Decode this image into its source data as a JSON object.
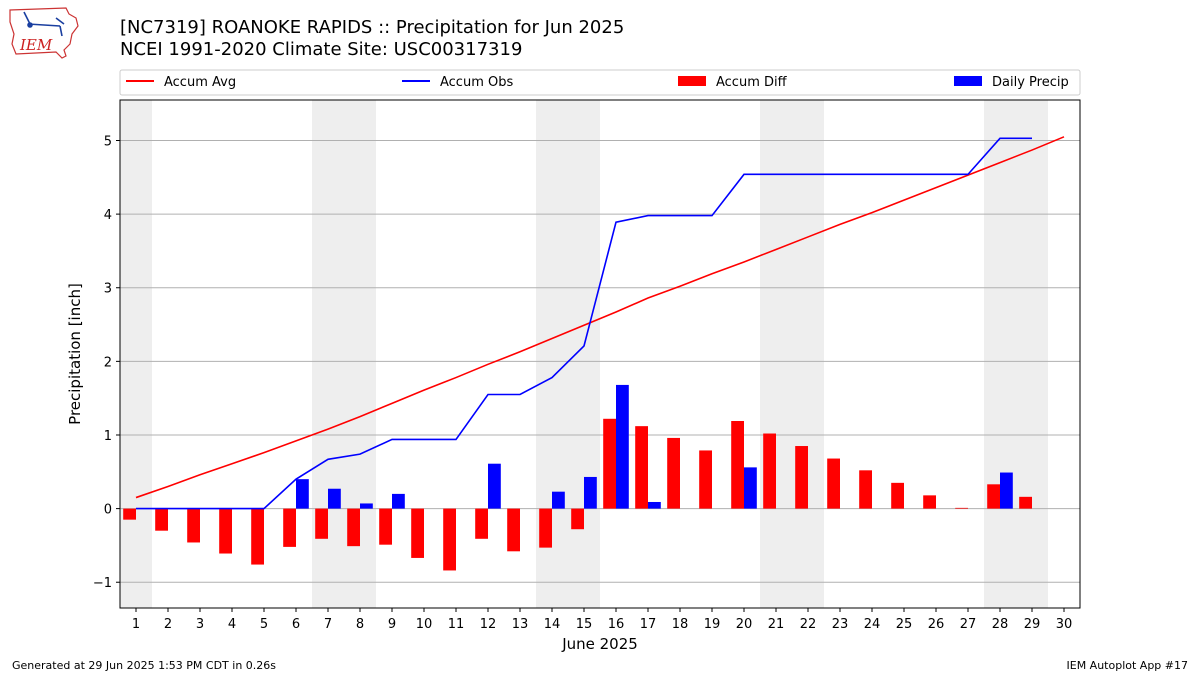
{
  "title": "[NC7319] ROANOKE RAPIDS :: Precipitation for Jun 2025",
  "subtitle": "NCEI 1991-2020 Climate Site: USC00317319",
  "logo_text": "IEM",
  "footer_left": "Generated at 29 Jun 2025 1:53 PM CDT in 0.26s",
  "footer_right": "IEM Autoplot App #17",
  "colors": {
    "accum_avg": "#ff0000",
    "accum_obs": "#0000ff",
    "accum_diff": "#ff0000",
    "daily_precip": "#0000ff",
    "weekend_shade": "#eeeeee",
    "grid": "#b0b0b0"
  },
  "chart_data": {
    "type": "bar",
    "xlabel": "June 2025",
    "ylabel": "Precipitation [inch]",
    "xlim": [
      0.5,
      30.5
    ],
    "ylim": [
      -1.35,
      5.55
    ],
    "x_ticks": [
      1,
      2,
      3,
      4,
      5,
      6,
      7,
      8,
      9,
      10,
      11,
      12,
      13,
      14,
      15,
      16,
      17,
      18,
      19,
      20,
      21,
      22,
      23,
      24,
      25,
      26,
      27,
      28,
      29,
      30
    ],
    "y_ticks": [
      -1,
      0,
      1,
      2,
      3,
      4,
      5
    ],
    "y_tick_labels": [
      "−1",
      "0",
      "1",
      "2",
      "3",
      "4",
      "5"
    ],
    "grid": "horizontal",
    "legend_position": "top",
    "weekend_shading": [
      [
        0.5,
        1.5
      ],
      [
        6.5,
        8.5
      ],
      [
        13.5,
        15.5
      ],
      [
        20.5,
        22.5
      ],
      [
        27.5,
        29.5
      ]
    ],
    "series": [
      {
        "name": "Accum Avg",
        "kind": "line",
        "x": [
          1,
          2,
          3,
          4,
          5,
          6,
          7,
          8,
          9,
          10,
          11,
          12,
          13,
          14,
          15,
          16,
          17,
          18,
          19,
          20,
          21,
          22,
          23,
          24,
          25,
          26,
          27,
          28,
          29,
          30
        ],
        "values": [
          0.15,
          0.3,
          0.46,
          0.61,
          0.76,
          0.92,
          1.08,
          1.25,
          1.43,
          1.61,
          1.78,
          1.96,
          2.13,
          2.31,
          2.49,
          2.67,
          2.86,
          3.02,
          3.19,
          3.35,
          3.52,
          3.69,
          3.86,
          4.02,
          4.19,
          4.36,
          4.53,
          4.7,
          4.87,
          5.05
        ]
      },
      {
        "name": "Accum Obs",
        "kind": "line",
        "x": [
          1,
          2,
          3,
          4,
          5,
          6,
          7,
          8,
          9,
          10,
          11,
          12,
          13,
          14,
          15,
          16,
          17,
          18,
          19,
          20,
          21,
          22,
          23,
          24,
          25,
          26,
          27,
          28,
          29
        ],
        "values": [
          0.0,
          0.0,
          0.0,
          0.0,
          0.0,
          0.4,
          0.67,
          0.74,
          0.94,
          0.94,
          0.94,
          1.55,
          1.55,
          1.78,
          2.21,
          3.89,
          3.98,
          3.98,
          3.98,
          4.54,
          4.54,
          4.54,
          4.54,
          4.54,
          4.54,
          4.54,
          4.54,
          5.03,
          5.03
        ]
      },
      {
        "name": "Accum Diff",
        "kind": "bar",
        "x": [
          1,
          2,
          3,
          4,
          5,
          6,
          7,
          8,
          9,
          10,
          11,
          12,
          13,
          14,
          15,
          16,
          17,
          18,
          19,
          20,
          21,
          22,
          23,
          24,
          25,
          26,
          27,
          28,
          29
        ],
        "values": [
          -0.15,
          -0.3,
          -0.46,
          -0.61,
          -0.76,
          -0.52,
          -0.41,
          -0.51,
          -0.49,
          -0.67,
          -0.84,
          -0.41,
          -0.58,
          -0.53,
          -0.28,
          1.22,
          1.12,
          0.96,
          0.79,
          1.19,
          1.02,
          0.85,
          0.68,
          0.52,
          0.35,
          0.18,
          0.01,
          0.33,
          0.16
        ]
      },
      {
        "name": "Daily Precip",
        "kind": "bar",
        "x": [
          1,
          2,
          3,
          4,
          5,
          6,
          7,
          8,
          9,
          10,
          11,
          12,
          13,
          14,
          15,
          16,
          17,
          18,
          19,
          20,
          21,
          22,
          23,
          24,
          25,
          26,
          27,
          28,
          29
        ],
        "values": [
          0,
          0,
          0,
          0,
          0,
          0.4,
          0.27,
          0.07,
          0.2,
          0,
          0,
          0.61,
          0,
          0.23,
          0.43,
          1.68,
          0.09,
          0,
          0,
          0.56,
          0,
          0,
          0,
          0,
          0,
          0,
          0,
          0.49,
          0
        ]
      }
    ]
  }
}
